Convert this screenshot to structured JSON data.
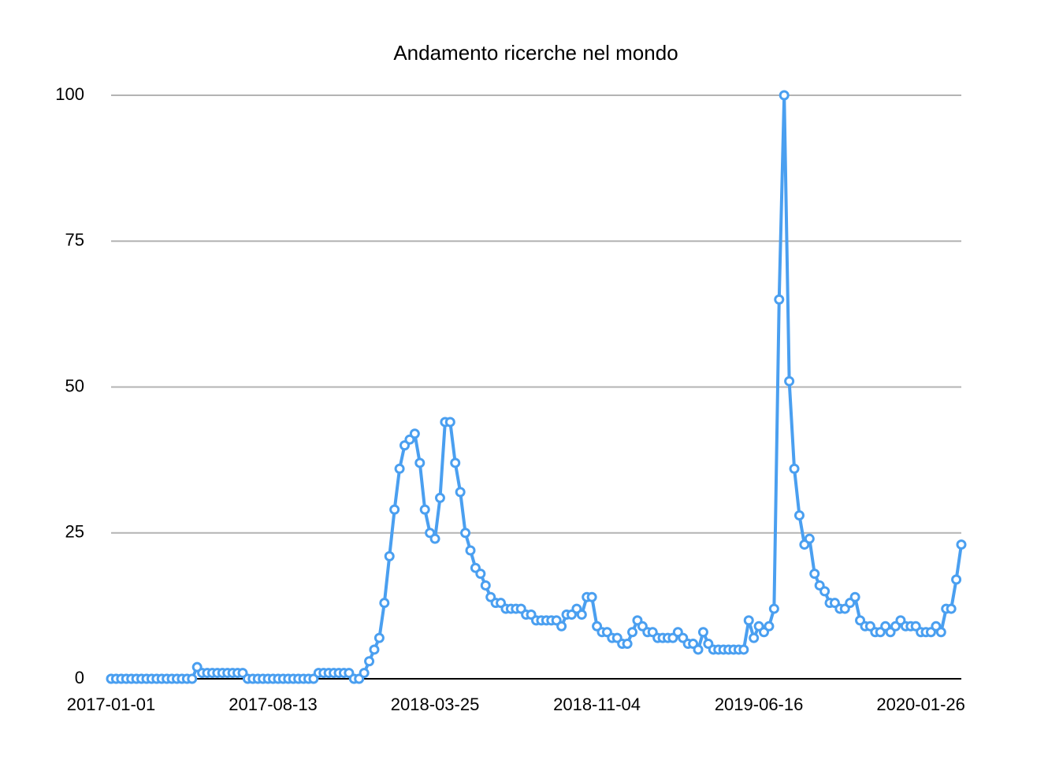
{
  "chart_data": {
    "type": "line",
    "title": "Andamento ricerche nel mondo",
    "categories": [
      "2017-01-01",
      null,
      null,
      null,
      null,
      null,
      null,
      null,
      null,
      null,
      null,
      null,
      null,
      null,
      null,
      null,
      null,
      null,
      null,
      null,
      null,
      null,
      null,
      null,
      null,
      null,
      null,
      null,
      null,
      null,
      null,
      null,
      "2017-08-13",
      null,
      null,
      null,
      null,
      null,
      null,
      null,
      null,
      null,
      null,
      null,
      null,
      null,
      null,
      null,
      null,
      null,
      null,
      null,
      null,
      null,
      null,
      null,
      null,
      null,
      null,
      null,
      null,
      null,
      null,
      null,
      "2018-03-25",
      null,
      null,
      null,
      null,
      null,
      null,
      null,
      null,
      null,
      null,
      null,
      null,
      null,
      null,
      null,
      null,
      null,
      null,
      null,
      null,
      null,
      null,
      null,
      null,
      null,
      null,
      null,
      null,
      null,
      null,
      null,
      "2018-11-04",
      null,
      null,
      null,
      null,
      null,
      null,
      null,
      null,
      null,
      null,
      null,
      null,
      null,
      null,
      null,
      null,
      null,
      null,
      null,
      null,
      null,
      null,
      null,
      null,
      null,
      null,
      null,
      null,
      null,
      null,
      null,
      "2019-06-16",
      null,
      null,
      null,
      null,
      null,
      null,
      null,
      null,
      null,
      null,
      null,
      null,
      null,
      null,
      null,
      null,
      null,
      null,
      null,
      null,
      null,
      null,
      null,
      null,
      null,
      null,
      null,
      null,
      null,
      null,
      null,
      "2020-01-26",
      null,
      null,
      null,
      null,
      null,
      null,
      null,
      null
    ],
    "values": [
      0,
      0,
      0,
      0,
      0,
      0,
      0,
      0,
      0,
      0,
      0,
      0,
      0,
      0,
      0,
      0,
      0,
      2,
      1,
      1,
      1,
      1,
      1,
      1,
      1,
      1,
      1,
      0,
      0,
      0,
      0,
      0,
      0,
      0,
      0,
      0,
      0,
      0,
      0,
      0,
      0,
      1,
      1,
      1,
      1,
      1,
      1,
      1,
      0,
      0,
      1,
      3,
      5,
      7,
      13,
      21,
      29,
      36,
      40,
      41,
      42,
      37,
      29,
      25,
      24,
      31,
      44,
      44,
      37,
      32,
      25,
      22,
      19,
      18,
      16,
      14,
      13,
      13,
      12,
      12,
      12,
      12,
      11,
      11,
      10,
      10,
      10,
      10,
      10,
      9,
      11,
      11,
      12,
      11,
      14,
      14,
      9,
      8,
      8,
      7,
      7,
      6,
      6,
      8,
      10,
      9,
      8,
      8,
      7,
      7,
      7,
      7,
      8,
      7,
      6,
      6,
      5,
      8,
      6,
      5,
      5,
      5,
      5,
      5,
      5,
      5,
      10,
      7,
      9,
      8,
      9,
      12,
      65,
      100,
      51,
      36,
      28,
      23,
      24,
      18,
      16,
      15,
      13,
      13,
      12,
      12,
      13,
      14,
      10,
      9,
      9,
      8,
      8,
      9,
      8,
      9,
      10,
      9,
      9,
      9,
      8,
      8,
      8,
      9,
      8,
      12,
      12,
      17,
      23
    ],
    "color": "#4a9ff0",
    "ylim": [
      0,
      100
    ],
    "yticks": [
      0,
      25,
      50,
      75,
      100
    ],
    "grid": true
  }
}
